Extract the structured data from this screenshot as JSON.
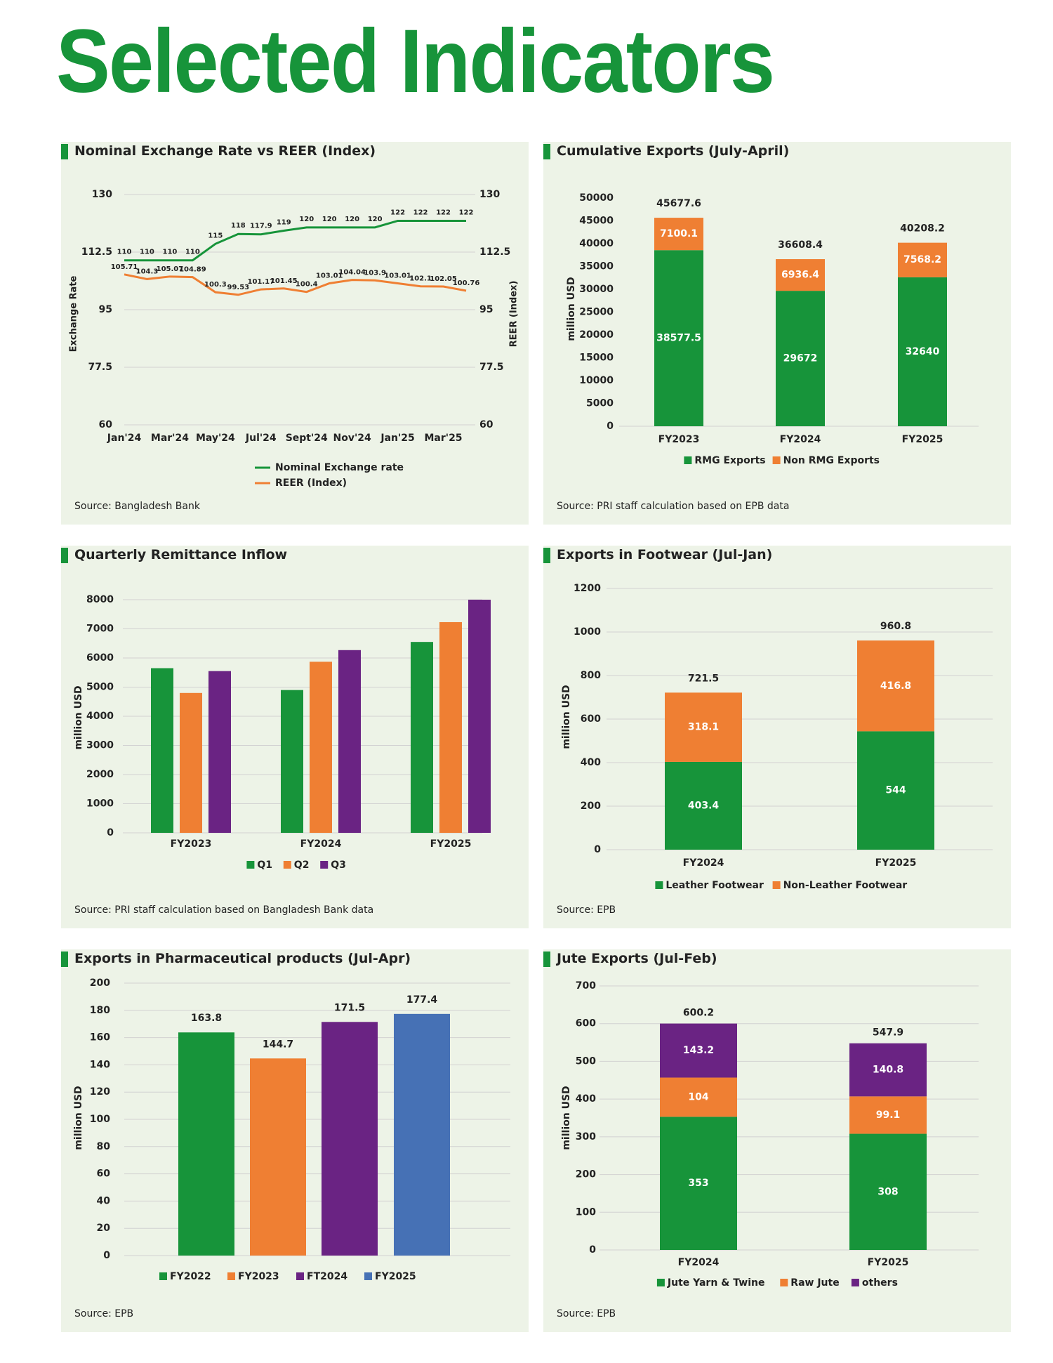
{
  "page": {
    "title": "Selected Indicators"
  },
  "panels": [
    {
      "title": "Nominal Exchange Rate vs REER (Index)",
      "source": "Source: Bangladesh Bank"
    },
    {
      "title": "Cumulative Exports (July-April)",
      "source": "Source: PRI staff calculation based on EPB data"
    },
    {
      "title": "Quarterly Remittance Inflow",
      "source": "Source: PRI staff calculation based on Bangladesh Bank data"
    },
    {
      "title": "Exports in Footwear (Jul-Jan)",
      "source": "Source: EPB"
    },
    {
      "title": "Exports in Pharmaceutical products (Jul-Apr)",
      "source": "Source: EPB"
    },
    {
      "title": "Jute Exports (Jul-Feb)",
      "source": "Source: EPB"
    }
  ],
  "colors": {
    "green": "#17943a",
    "orange": "#ef7f33",
    "purple": "#6a2383",
    "blue": "#4671b5",
    "grid": "#d2d2d2",
    "text": "#222222"
  },
  "chart_data": [
    {
      "type": "line",
      "title": "Nominal Exchange Rate vs REER (Index)",
      "ylabel": "Exchange Rate",
      "y2label": "REER (Index)",
      "ylim": [
        60,
        130
      ],
      "yticks": [
        130,
        112.5,
        95,
        77.5,
        60
      ],
      "ytick_labels": [
        "130",
        "112.5",
        "95",
        "77.5",
        "60"
      ],
      "xtick_labels": [
        "Jan'24",
        "Mar'24",
        "May'24",
        "Jul'24",
        "Sept'24",
        "Nov'24",
        "Jan'25",
        "Mar'25"
      ],
      "n_points": 16,
      "series": [
        {
          "name": "Nominal Exchange rate",
          "color": "#17943a",
          "values": [
            110,
            110,
            110,
            110,
            115,
            118,
            117.9,
            119,
            120,
            120,
            120,
            120,
            122,
            122,
            122,
            122
          ],
          "labels": [
            "110",
            "110",
            "110",
            "110",
            "115",
            "118",
            "117.9",
            "119",
            "120",
            "120",
            "120",
            "120",
            "122",
            "122",
            "122",
            "122"
          ]
        },
        {
          "name": "REER (Index)",
          "color": "#ef7f33",
          "values": [
            105.71,
            104.3,
            105.07,
            104.89,
            100.3,
            99.53,
            101.17,
            101.45,
            100.4,
            103.01,
            104.04,
            103.9,
            103.01,
            102.1,
            102.05,
            100.76
          ],
          "labels": [
            "105.71",
            "104.3",
            "105.07",
            "104.89",
            "100.3",
            "99.53",
            "101.17",
            "101.45",
            "100.4",
            "103.01",
            "104.04",
            "103.9",
            "103.01",
            "102.1",
            "102.05",
            "100.76"
          ]
        }
      ],
      "legend": "bottom",
      "grid": true
    },
    {
      "type": "bar",
      "stacked": true,
      "title": "Cumulative Exports (July-April)",
      "ylabel": "million USD",
      "ylim": [
        0,
        50000
      ],
      "yticks": [
        0,
        5000,
        10000,
        15000,
        20000,
        25000,
        30000,
        35000,
        40000,
        45000,
        50000
      ],
      "categories": [
        "FY2023",
        "FY2024",
        "FY2025"
      ],
      "series": [
        {
          "name": "RMG Exports",
          "color": "#17943a",
          "values": [
            38577.5,
            29672,
            32640
          ],
          "labels": [
            "38577.5",
            "29672",
            "32640"
          ]
        },
        {
          "name": "Non RMG Exports",
          "color": "#ef7f33",
          "values": [
            7100.1,
            6936.4,
            7568.2
          ],
          "labels": [
            "7100.1",
            "6936.4",
            "7568.2"
          ]
        }
      ],
      "totals": [
        "45677.6",
        "36608.4",
        "40208.2"
      ],
      "legend": "bottom",
      "grid": false
    },
    {
      "type": "bar",
      "title": "Quarterly Remittance Inflow",
      "ylabel": "million USD",
      "ylim": [
        0,
        8000
      ],
      "yticks": [
        0,
        1000,
        2000,
        3000,
        4000,
        5000,
        6000,
        7000,
        8000
      ],
      "categories": [
        "FY2023",
        "FY2024",
        "FY2025"
      ],
      "series": [
        {
          "name": "Q1",
          "color": "#17943a",
          "values": [
            5650,
            4900,
            6550
          ]
        },
        {
          "name": "Q2",
          "color": "#ef7f33",
          "values": [
            4800,
            5870,
            7230
          ]
        },
        {
          "name": "Q3",
          "color": "#6a2383",
          "values": [
            5550,
            6270,
            8000
          ]
        }
      ],
      "legend": "bottom",
      "grid": true
    },
    {
      "type": "bar",
      "stacked": true,
      "title": "Exports in Footwear (Jul-Jan)",
      "ylabel": "million USD",
      "ylim": [
        0,
        1200
      ],
      "yticks": [
        0,
        200,
        400,
        600,
        800,
        1000,
        1200
      ],
      "categories": [
        "FY2024",
        "FY2025"
      ],
      "series": [
        {
          "name": "Leather Footwear",
          "color": "#17943a",
          "values": [
            403.4,
            544
          ],
          "labels": [
            "403.4",
            "544"
          ]
        },
        {
          "name": "Non-Leather Footwear",
          "color": "#ef7f33",
          "values": [
            318.1,
            416.8
          ],
          "labels": [
            "318.1",
            "416.8"
          ]
        }
      ],
      "totals": [
        "721.5",
        "960.8"
      ],
      "legend": "bottom",
      "grid": true
    },
    {
      "type": "bar",
      "title": "Exports in Pharmaceutical products (Jul-Apr)",
      "ylabel": "million USD",
      "ylim": [
        0,
        200
      ],
      "yticks": [
        0,
        20,
        40,
        60,
        80,
        100,
        120,
        140,
        160,
        180,
        200
      ],
      "categories": [
        "FY2022",
        "FY2023",
        "FT2024",
        "FY2025"
      ],
      "values": [
        163.8,
        144.7,
        171.5,
        177.4
      ],
      "labels": [
        "163.8",
        "144.7",
        "171.5",
        "177.4"
      ],
      "colors": [
        "#17943a",
        "#ef7f33",
        "#6a2383",
        "#4671b5"
      ],
      "legend": "bottom",
      "grid": true
    },
    {
      "type": "bar",
      "stacked": true,
      "title": "Jute Exports (Jul-Feb)",
      "ylabel": "million USD",
      "ylim": [
        0,
        700
      ],
      "yticks": [
        0,
        100,
        200,
        300,
        400,
        500,
        600,
        700
      ],
      "categories": [
        "FY2024",
        "FY2025"
      ],
      "series": [
        {
          "name": "Jute Yarn & Twine",
          "color": "#17943a",
          "values": [
            353,
            308
          ],
          "labels": [
            "353",
            "308"
          ]
        },
        {
          "name": "Raw Jute",
          "color": "#ef7f33",
          "values": [
            104,
            99.1
          ],
          "labels": [
            "104",
            "99.1"
          ]
        },
        {
          "name": "others",
          "color": "#6a2383",
          "values": [
            143.2,
            140.8
          ],
          "labels": [
            "143.2",
            "140.8"
          ]
        }
      ],
      "totals": [
        "600.2",
        "547.9"
      ],
      "legend": "bottom",
      "grid": true
    }
  ]
}
